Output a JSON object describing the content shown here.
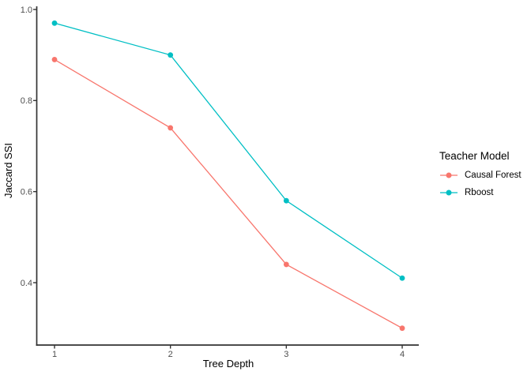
{
  "chart_data": {
    "type": "line",
    "x": [
      1,
      2,
      3,
      4
    ],
    "x_tick_labels": [
      "1",
      "2",
      "3",
      "4"
    ],
    "y_ticks": [
      0.4,
      0.6,
      0.8,
      1.0
    ],
    "y_tick_labels": [
      "0.4",
      "0.6",
      "0.8",
      "1.0"
    ],
    "xlabel": "Tree Depth",
    "ylabel": "Jaccard SSI",
    "xlim": [
      0.85,
      4.15
    ],
    "ylim": [
      0.266,
      1.004
    ],
    "grid": false,
    "background_color": "#FFFFFF",
    "axis_line_color": "#333333",
    "tick_label_color": "#4D4D4D",
    "legend": {
      "title": "Teacher Model",
      "position": "right"
    },
    "series": [
      {
        "name": "Causal Forest",
        "color": "#F8766D",
        "values": [
          0.89,
          0.74,
          0.44,
          0.3
        ]
      },
      {
        "name": "Rboost",
        "color": "#00BFC4",
        "values": [
          0.97,
          0.9,
          0.58,
          0.41
        ]
      }
    ]
  }
}
